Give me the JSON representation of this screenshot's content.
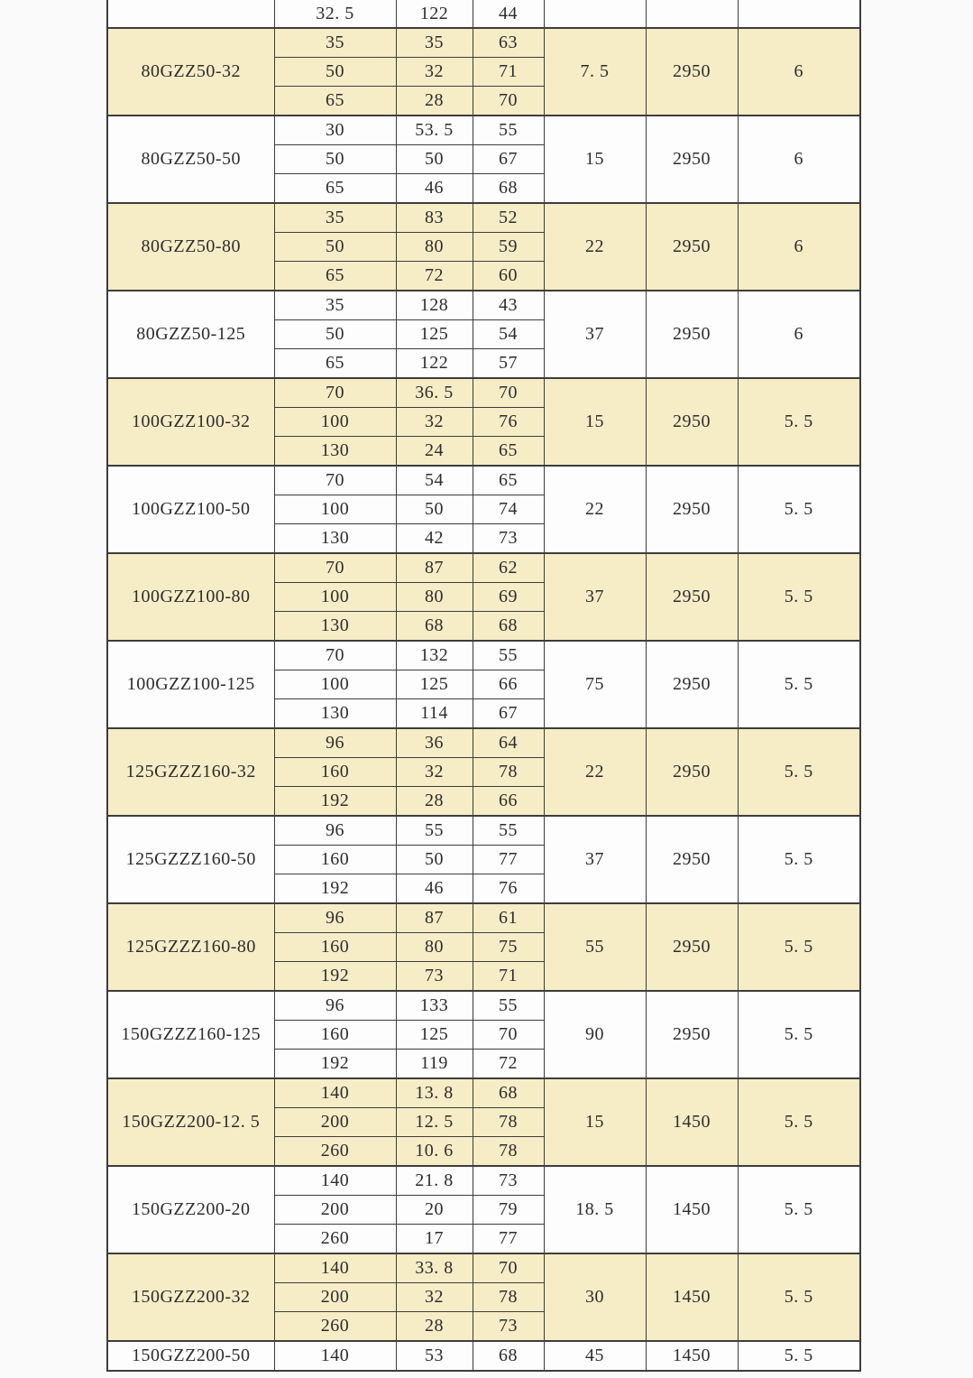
{
  "colors": {
    "shaded_row": "#f6ecc6",
    "border": "#3d3d3d",
    "text": "#2d2d2d",
    "background": "#fafafa"
  },
  "table": {
    "description": "pump-specification-table-fragment",
    "partial_top_row": {
      "model": "",
      "flow": "32. 5",
      "head": "122",
      "eff": "44",
      "power": "",
      "speed": "",
      "npsh": ""
    },
    "groups": [
      {
        "model": "80GZZ50-32",
        "shaded": true,
        "rows": [
          [
            "35",
            "35",
            "63"
          ],
          [
            "50",
            "32",
            "71"
          ],
          [
            "65",
            "28",
            "70"
          ]
        ],
        "power": "7. 5",
        "speed": "2950",
        "npsh": "6"
      },
      {
        "model": "80GZZ50-50",
        "shaded": false,
        "rows": [
          [
            "30",
            "53. 5",
            "55"
          ],
          [
            "50",
            "50",
            "67"
          ],
          [
            "65",
            "46",
            "68"
          ]
        ],
        "power": "15",
        "speed": "2950",
        "npsh": "6"
      },
      {
        "model": "80GZZ50-80",
        "shaded": true,
        "rows": [
          [
            "35",
            "83",
            "52"
          ],
          [
            "50",
            "80",
            "59"
          ],
          [
            "65",
            "72",
            "60"
          ]
        ],
        "power": "22",
        "speed": "2950",
        "npsh": "6"
      },
      {
        "model": "80GZZ50-125",
        "shaded": false,
        "rows": [
          [
            "35",
            "128",
            "43"
          ],
          [
            "50",
            "125",
            "54"
          ],
          [
            "65",
            "122",
            "57"
          ]
        ],
        "power": "37",
        "speed": "2950",
        "npsh": "6"
      },
      {
        "model": "100GZZ100-32",
        "shaded": true,
        "rows": [
          [
            "70",
            "36. 5",
            "70"
          ],
          [
            "100",
            "32",
            "76"
          ],
          [
            "130",
            "24",
            "65"
          ]
        ],
        "power": "15",
        "speed": "2950",
        "npsh": "5. 5"
      },
      {
        "model": "100GZZ100-50",
        "shaded": false,
        "rows": [
          [
            "70",
            "54",
            "65"
          ],
          [
            "100",
            "50",
            "74"
          ],
          [
            "130",
            "42",
            "73"
          ]
        ],
        "power": "22",
        "speed": "2950",
        "npsh": "5. 5"
      },
      {
        "model": "100GZZ100-80",
        "shaded": true,
        "rows": [
          [
            "70",
            "87",
            "62"
          ],
          [
            "100",
            "80",
            "69"
          ],
          [
            "130",
            "68",
            "68"
          ]
        ],
        "power": "37",
        "speed": "2950",
        "npsh": "5. 5"
      },
      {
        "model": "100GZZ100-125",
        "shaded": false,
        "rows": [
          [
            "70",
            "132",
            "55"
          ],
          [
            "100",
            "125",
            "66"
          ],
          [
            "130",
            "114",
            "67"
          ]
        ],
        "power": "75",
        "speed": "2950",
        "npsh": "5. 5"
      },
      {
        "model": "125GZZZ160-32",
        "shaded": true,
        "rows": [
          [
            "96",
            "36",
            "64"
          ],
          [
            "160",
            "32",
            "78"
          ],
          [
            "192",
            "28",
            "66"
          ]
        ],
        "power": "22",
        "speed": "2950",
        "npsh": "5. 5"
      },
      {
        "model": "125GZZZ160-50",
        "shaded": false,
        "rows": [
          [
            "96",
            "55",
            "55"
          ],
          [
            "160",
            "50",
            "77"
          ],
          [
            "192",
            "46",
            "76"
          ]
        ],
        "power": "37",
        "speed": "2950",
        "npsh": "5. 5"
      },
      {
        "model": "125GZZZ160-80",
        "shaded": true,
        "rows": [
          [
            "96",
            "87",
            "61"
          ],
          [
            "160",
            "80",
            "75"
          ],
          [
            "192",
            "73",
            "71"
          ]
        ],
        "power": "55",
        "speed": "2950",
        "npsh": "5. 5"
      },
      {
        "model": "150GZZZ160-125",
        "shaded": false,
        "rows": [
          [
            "96",
            "133",
            "55"
          ],
          [
            "160",
            "125",
            "70"
          ],
          [
            "192",
            "119",
            "72"
          ]
        ],
        "power": "90",
        "speed": "2950",
        "npsh": "5. 5"
      },
      {
        "model": "150GZZ200-12. 5",
        "shaded": true,
        "rows": [
          [
            "140",
            "13. 8",
            "68"
          ],
          [
            "200",
            "12. 5",
            "78"
          ],
          [
            "260",
            "10. 6",
            "78"
          ]
        ],
        "power": "15",
        "speed": "1450",
        "npsh": "5. 5"
      },
      {
        "model": "150GZZ200-20",
        "shaded": false,
        "rows": [
          [
            "140",
            "21. 8",
            "73"
          ],
          [
            "200",
            "20",
            "79"
          ],
          [
            "260",
            "17",
            "77"
          ]
        ],
        "power": "18. 5",
        "speed": "1450",
        "npsh": "5. 5"
      },
      {
        "model": "150GZZ200-32",
        "shaded": true,
        "rows": [
          [
            "140",
            "33. 8",
            "70"
          ],
          [
            "200",
            "32",
            "78"
          ],
          [
            "260",
            "28",
            "73"
          ]
        ],
        "power": "30",
        "speed": "1450",
        "npsh": "5. 5"
      },
      {
        "model": "150GZZ200-50",
        "shaded": false,
        "rows": [
          [
            "140",
            "53",
            "68"
          ]
        ],
        "power": "45",
        "speed": "1450",
        "npsh": "5. 5"
      }
    ]
  }
}
